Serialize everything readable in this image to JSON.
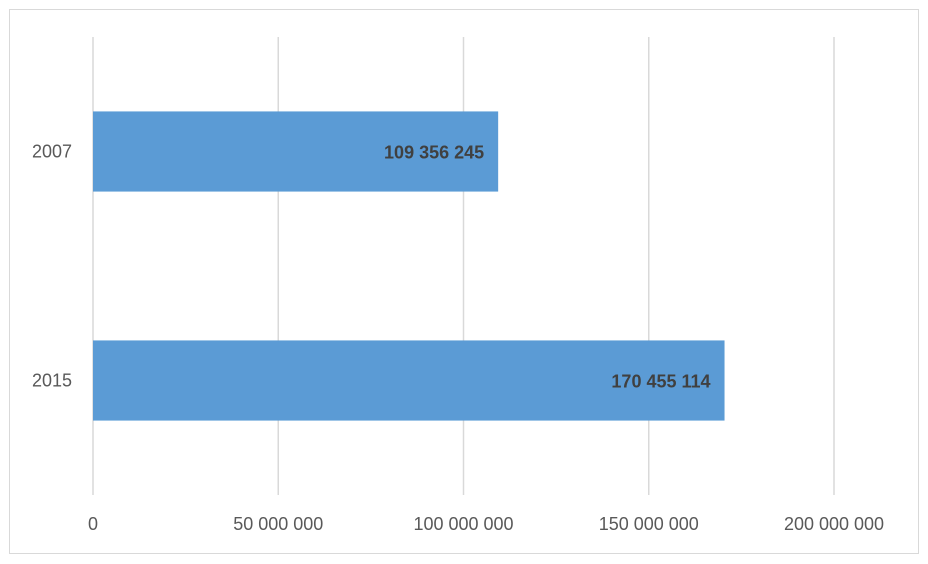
{
  "chart_data": {
    "type": "bar",
    "orientation": "horizontal",
    "categories": [
      "2007",
      "2015"
    ],
    "values": [
      109356245,
      170455114
    ],
    "value_labels": [
      "109 356 245",
      "170 455 114"
    ],
    "color": "#5b9bd5",
    "xlim": [
      0,
      200000000
    ],
    "xticks": [
      0,
      {
        "value": 50000000,
        "label": "50 000 000"
      },
      {
        "value": 100000000,
        "label": "100 000 000"
      },
      {
        "value": 150000000,
        "label": "150 000 000"
      },
      {
        "value": 200000000,
        "label": "200 000 000"
      }
    ],
    "grid": true
  }
}
